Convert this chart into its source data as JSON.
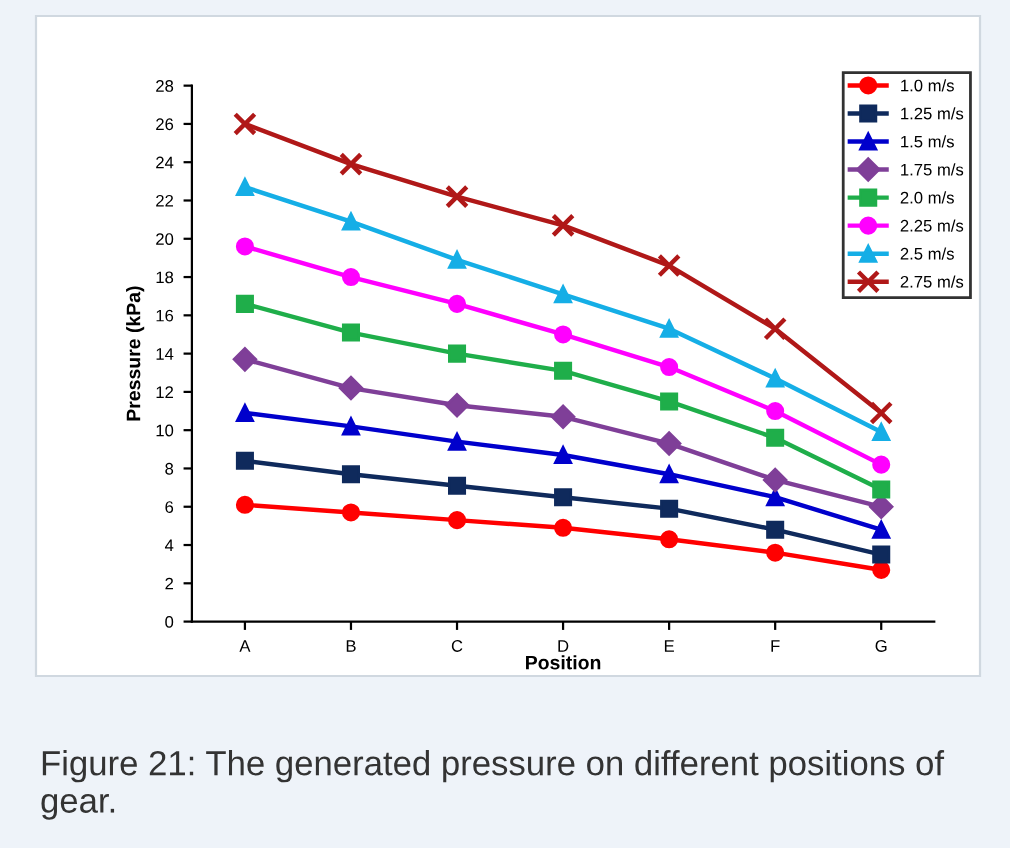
{
  "chart_data": {
    "type": "line",
    "xlabel": "Position",
    "ylabel": "Pressure (kPa)",
    "categories": [
      "A",
      "B",
      "C",
      "D",
      "E",
      "F",
      "G"
    ],
    "ylim": [
      0,
      28
    ],
    "yticks": [
      0,
      2,
      4,
      6,
      8,
      10,
      12,
      14,
      16,
      18,
      20,
      22,
      24,
      26,
      28
    ],
    "grid": false,
    "legend": "top right",
    "series": [
      {
        "name": "1.0 m/s",
        "color": "#ff0000",
        "marker": "circle",
        "values": [
          6.1,
          5.7,
          5.3,
          4.9,
          4.3,
          3.6,
          2.7
        ]
      },
      {
        "name": "1.25 m/s",
        "color": "#0f2a5c",
        "marker": "square",
        "values": [
          8.4,
          7.7,
          7.1,
          6.5,
          5.9,
          4.8,
          3.5
        ]
      },
      {
        "name": "1.5 m/s",
        "color": "#0000cc",
        "marker": "triangle",
        "values": [
          10.9,
          10.2,
          9.4,
          8.7,
          7.7,
          6.5,
          4.8
        ]
      },
      {
        "name": "1.75 m/s",
        "color": "#7f3f98",
        "marker": "diamond",
        "values": [
          13.7,
          12.2,
          11.3,
          10.7,
          9.3,
          7.4,
          6.0
        ]
      },
      {
        "name": "2.0 m/s",
        "color": "#1fae4a",
        "marker": "square",
        "values": [
          16.6,
          15.1,
          14.0,
          13.1,
          11.5,
          9.6,
          6.9
        ]
      },
      {
        "name": "2.25 m/s",
        "color": "#ff00ff",
        "marker": "circle",
        "values": [
          19.6,
          18.0,
          16.6,
          15.0,
          13.3,
          11.0,
          8.2
        ]
      },
      {
        "name": "2.5 m/s",
        "color": "#15aee6",
        "marker": "triangle",
        "values": [
          22.7,
          20.9,
          18.9,
          17.1,
          15.3,
          12.7,
          9.9
        ]
      },
      {
        "name": "2.75 m/s",
        "color": "#b01818",
        "marker": "cross",
        "values": [
          26.0,
          23.9,
          22.2,
          20.7,
          18.6,
          15.3,
          10.9
        ]
      }
    ],
    "annotations": [
      "Figure 21: The generated pressure on different positions of gear."
    ]
  }
}
